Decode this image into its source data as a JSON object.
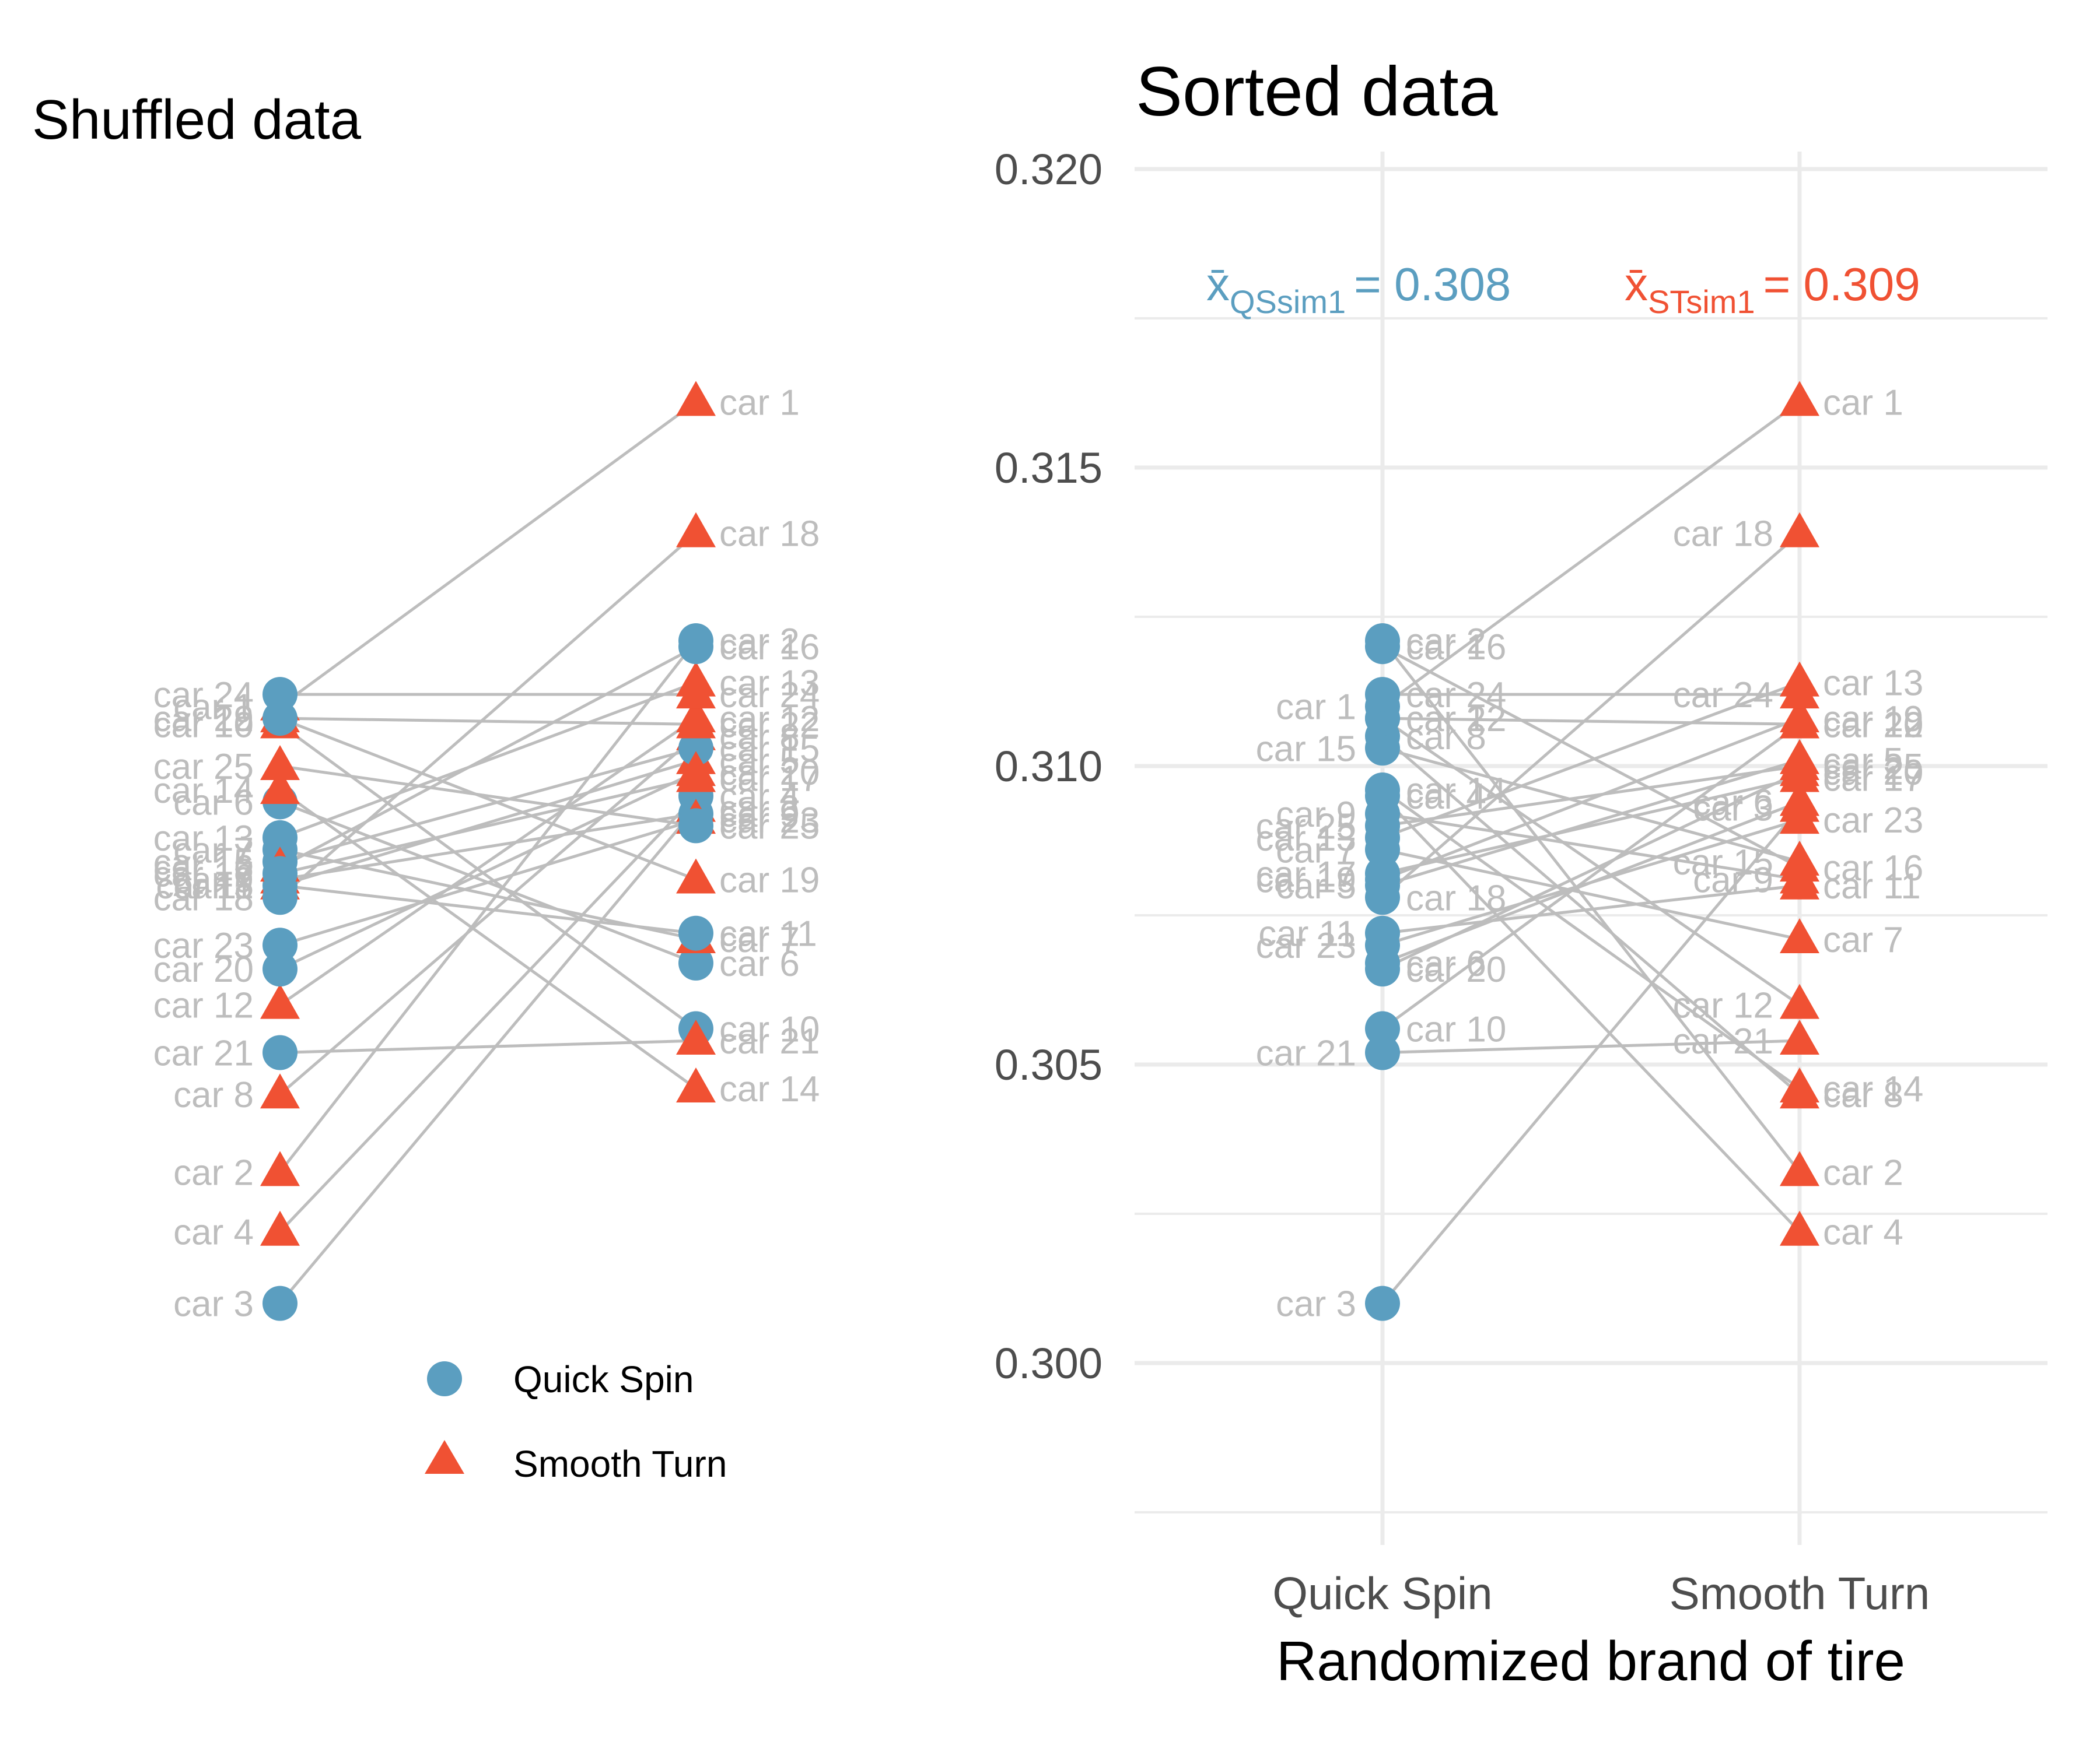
{
  "colors": {
    "quick_spin": "#5b9ec0",
    "smooth_turn": "#f05133",
    "connector": "#bdbdbd",
    "car_label": "#bdbdbd",
    "grid": "#ebebeb"
  },
  "legend": {
    "items": [
      {
        "label": "Quick Spin",
        "shape": "circle"
      },
      {
        "label": "Smooth Turn",
        "shape": "triangle"
      }
    ]
  },
  "chart_data": [
    {
      "type": "scatter",
      "title": "Shuffled data",
      "categories": [
        "Quick Spin",
        "Smooth Turn"
      ],
      "axes_visible": false,
      "ylim": [
        0.2975,
        0.3205
      ],
      "label_prefix": "car ",
      "points": [
        {
          "car": 1,
          "left": {
            "brand": "Smooth Turn",
            "value": 0.311
          },
          "right": {
            "brand": "Smooth Turn",
            "value": 0.3161
          }
        },
        {
          "car": 2,
          "left": {
            "brand": "Smooth Turn",
            "value": 0.3032
          },
          "right": {
            "brand": "Quick Spin",
            "value": 0.3121
          }
        },
        {
          "car": 3,
          "left": {
            "brand": "Quick Spin",
            "value": 0.301
          },
          "right": {
            "brand": "Smooth Turn",
            "value": 0.3093
          }
        },
        {
          "car": 4,
          "left": {
            "brand": "Smooth Turn",
            "value": 0.3022
          },
          "right": {
            "brand": "Quick Spin",
            "value": 0.3095
          }
        },
        {
          "car": 5,
          "left": {
            "brand": "Smooth Turn",
            "value": 0.308
          },
          "right": {
            "brand": "Smooth Turn",
            "value": 0.3101
          }
        },
        {
          "car": 6,
          "left": {
            "brand": "Quick Spin",
            "value": 0.3094
          },
          "right": {
            "brand": "Quick Spin",
            "value": 0.3067
          }
        },
        {
          "car": 7,
          "left": {
            "brand": "Quick Spin",
            "value": 0.3086
          },
          "right": {
            "brand": "Smooth Turn",
            "value": 0.3071
          }
        },
        {
          "car": 8,
          "left": {
            "brand": "Smooth Turn",
            "value": 0.3045
          },
          "right": {
            "brand": "Smooth Turn",
            "value": 0.3105
          }
        },
        {
          "car": 9,
          "left": {
            "brand": "Smooth Turn",
            "value": 0.3081
          },
          "right": {
            "brand": "Quick Spin",
            "value": 0.3092
          }
        },
        {
          "car": 10,
          "left": {
            "brand": "Smooth Turn",
            "value": 0.3107
          },
          "right": {
            "brand": "Quick Spin",
            "value": 0.3056
          }
        },
        {
          "car": 11,
          "left": {
            "brand": "Quick Spin",
            "value": 0.308
          },
          "right": {
            "brand": "Quick Spin",
            "value": 0.3072
          }
        },
        {
          "car": 12,
          "left": {
            "brand": "Smooth Turn",
            "value": 0.306
          },
          "right": {
            "brand": "Smooth Turn",
            "value": 0.3108
          }
        },
        {
          "car": 13,
          "left": {
            "brand": "Quick Spin",
            "value": 0.3088
          },
          "right": {
            "brand": "Smooth Turn",
            "value": 0.3114
          }
        },
        {
          "car": 14,
          "left": {
            "brand": "Smooth Turn",
            "value": 0.3096
          },
          "right": {
            "brand": "Smooth Turn",
            "value": 0.3046
          }
        },
        {
          "car": 15,
          "left": {
            "brand": "Quick Spin",
            "value": 0.3084
          },
          "right": {
            "brand": "Quick Spin",
            "value": 0.3103
          }
        },
        {
          "car": 16,
          "left": {
            "brand": "Smooth Turn",
            "value": 0.3083
          },
          "right": {
            "brand": "Quick Spin",
            "value": 0.312
          }
        },
        {
          "car": 17,
          "left": {
            "brand": "Quick Spin",
            "value": 0.3082
          },
          "right": {
            "brand": "Smooth Turn",
            "value": 0.3098
          }
        },
        {
          "car": 18,
          "left": {
            "brand": "Quick Spin",
            "value": 0.3078
          },
          "right": {
            "brand": "Smooth Turn",
            "value": 0.3139
          }
        },
        {
          "car": 19,
          "left": {
            "brand": "Smooth Turn",
            "value": 0.3108
          },
          "right": {
            "brand": "Smooth Turn",
            "value": 0.3081
          }
        },
        {
          "car": 20,
          "left": {
            "brand": "Quick Spin",
            "value": 0.3066
          },
          "right": {
            "brand": "Smooth Turn",
            "value": 0.3099
          }
        },
        {
          "car": 21,
          "left": {
            "brand": "Quick Spin",
            "value": 0.3052
          },
          "right": {
            "brand": "Smooth Turn",
            "value": 0.3054
          }
        },
        {
          "car": 22,
          "left": {
            "brand": "Quick Spin",
            "value": 0.3108
          },
          "right": {
            "brand": "Smooth Turn",
            "value": 0.3107
          }
        },
        {
          "car": 23,
          "left": {
            "brand": "Quick Spin",
            "value": 0.307
          },
          "right": {
            "brand": "Smooth Turn",
            "value": 0.3091
          }
        },
        {
          "car": 24,
          "left": {
            "brand": "Quick Spin",
            "value": 0.3112
          },
          "right": {
            "brand": "Smooth Turn",
            "value": 0.3112
          }
        },
        {
          "car": 25,
          "left": {
            "brand": "Smooth Turn",
            "value": 0.31
          },
          "right": {
            "brand": "Quick Spin",
            "value": 0.309
          }
        }
      ]
    },
    {
      "type": "scatter",
      "title": "Sorted data",
      "xlabel": "Randomized brand of tire",
      "ylabel": "",
      "categories": [
        "Quick Spin",
        "Smooth Turn"
      ],
      "ylim": [
        0.2975,
        0.3205
      ],
      "yticks": [
        0.3,
        0.305,
        0.31,
        0.315,
        0.32
      ],
      "ytick_labels": [
        "0.300",
        "0.305",
        "0.310",
        "0.315",
        "0.320"
      ],
      "grid": true,
      "label_prefix": "car ",
      "points": [
        {
          "car": 1,
          "left": 0.311,
          "right": 0.3161
        },
        {
          "car": 2,
          "left": 0.3121,
          "right": 0.3032
        },
        {
          "car": 3,
          "left": 0.301,
          "right": 0.3093
        },
        {
          "car": 4,
          "left": 0.3095,
          "right": 0.3022
        },
        {
          "car": 5,
          "left": 0.308,
          "right": 0.3101
        },
        {
          "car": 6,
          "left": 0.3067,
          "right": 0.3094
        },
        {
          "car": 7,
          "left": 0.3086,
          "right": 0.3071
        },
        {
          "car": 8,
          "left": 0.3105,
          "right": 0.3045
        },
        {
          "car": 9,
          "left": 0.3092,
          "right": 0.3081
        },
        {
          "car": 10,
          "left": 0.3056,
          "right": 0.3107
        },
        {
          "car": 11,
          "left": 0.3072,
          "right": 0.308
        },
        {
          "car": 12,
          "left": 0.3108,
          "right": 0.306
        },
        {
          "car": 13,
          "left": 0.3088,
          "right": 0.3114
        },
        {
          "car": 14,
          "left": 0.3096,
          "right": 0.3046
        },
        {
          "car": 15,
          "left": 0.3103,
          "right": 0.3084
        },
        {
          "car": 16,
          "left": 0.312,
          "right": 0.3083
        },
        {
          "car": 17,
          "left": 0.3082,
          "right": 0.3098
        },
        {
          "car": 18,
          "left": 0.3078,
          "right": 0.3139
        },
        {
          "car": 19,
          "left": 0.3081,
          "right": 0.3108
        },
        {
          "car": 20,
          "left": 0.3066,
          "right": 0.3099
        },
        {
          "car": 21,
          "left": 0.3052,
          "right": 0.3054
        },
        {
          "car": 22,
          "left": 0.3108,
          "right": 0.3107
        },
        {
          "car": 23,
          "left": 0.307,
          "right": 0.3091
        },
        {
          "car": 24,
          "left": 0.3112,
          "right": 0.3112
        },
        {
          "car": 25,
          "left": 0.309,
          "right": 0.31
        }
      ],
      "annotations": [
        {
          "symbol": "x̄",
          "subscript": "QSsim1",
          "text": "= 0.308",
          "brand": "Quick Spin"
        },
        {
          "symbol": "x̄",
          "subscript": "STsim1",
          "text": "= 0.309",
          "brand": "Smooth Turn"
        }
      ]
    }
  ]
}
